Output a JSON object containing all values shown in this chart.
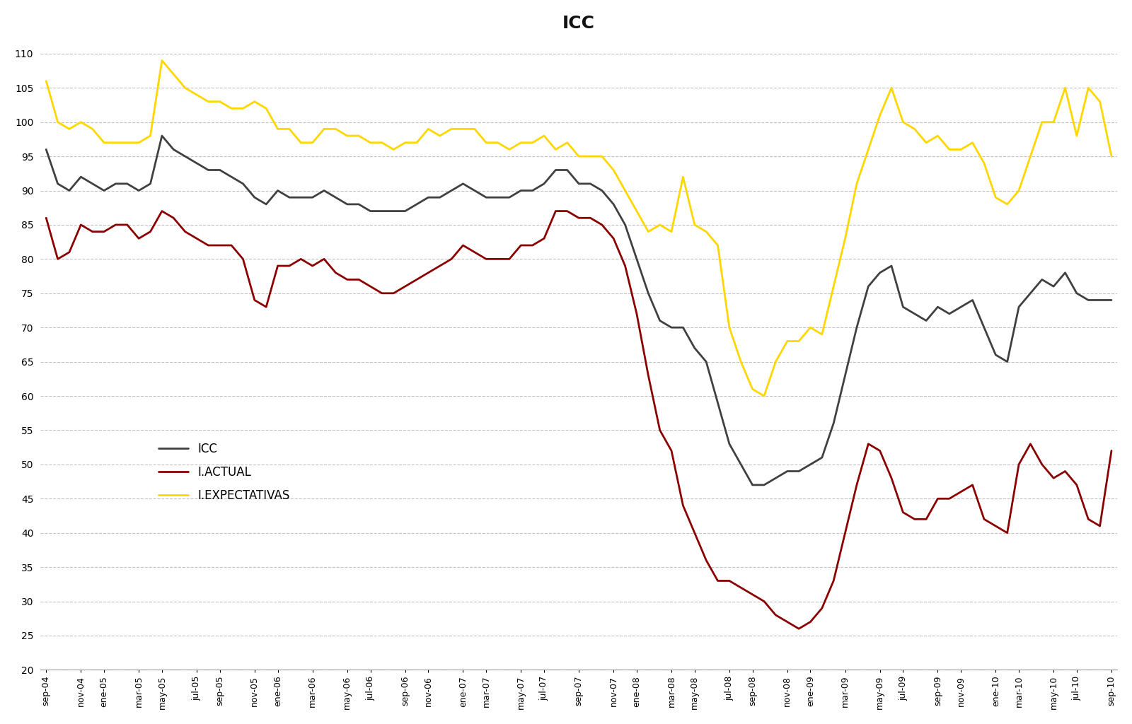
{
  "title": "ICC",
  "icc": [
    96,
    91,
    90,
    92,
    91,
    90,
    91,
    91,
    90,
    91,
    98,
    96,
    95,
    94,
    93,
    93,
    92,
    91,
    89,
    88,
    90,
    89,
    89,
    89,
    90,
    89,
    88,
    88,
    87,
    87,
    87,
    87,
    88,
    89,
    89,
    90,
    91,
    90,
    89,
    89,
    89,
    90,
    90,
    91,
    93,
    93,
    91,
    91,
    90,
    88,
    85,
    80,
    75,
    71,
    70,
    70,
    67,
    65,
    59,
    53,
    50,
    47,
    47,
    48,
    49,
    49,
    50,
    51,
    56,
    63,
    70,
    76,
    78,
    79,
    73,
    72,
    71,
    73,
    72,
    73,
    74,
    70,
    66,
    65,
    73,
    75,
    77,
    76,
    78,
    75,
    74,
    74,
    74
  ],
  "iactual": [
    86,
    80,
    81,
    85,
    84,
    84,
    85,
    85,
    83,
    84,
    87,
    86,
    84,
    83,
    82,
    82,
    82,
    80,
    74,
    73,
    79,
    79,
    80,
    79,
    80,
    78,
    77,
    77,
    76,
    75,
    75,
    76,
    77,
    78,
    79,
    80,
    82,
    81,
    80,
    80,
    80,
    82,
    82,
    83,
    87,
    87,
    86,
    86,
    85,
    83,
    79,
    72,
    63,
    55,
    52,
    44,
    40,
    36,
    33,
    33,
    32,
    31,
    30,
    28,
    27,
    26,
    27,
    29,
    33,
    40,
    47,
    53,
    52,
    48,
    43,
    42,
    42,
    45,
    45,
    46,
    47,
    42,
    41,
    40,
    50,
    53,
    50,
    48,
    49,
    47,
    42,
    41,
    52
  ],
  "iexpectativas": [
    106,
    100,
    99,
    100,
    99,
    97,
    97,
    97,
    97,
    98,
    109,
    107,
    105,
    104,
    103,
    103,
    102,
    102,
    103,
    102,
    99,
    99,
    97,
    97,
    99,
    99,
    98,
    98,
    97,
    97,
    96,
    97,
    97,
    99,
    98,
    99,
    99,
    99,
    97,
    97,
    96,
    97,
    97,
    98,
    96,
    97,
    95,
    95,
    95,
    93,
    90,
    87,
    84,
    85,
    84,
    92,
    85,
    84,
    82,
    70,
    65,
    61,
    60,
    65,
    68,
    68,
    70,
    69,
    76,
    83,
    91,
    96,
    101,
    105,
    100,
    99,
    97,
    98,
    96,
    96,
    97,
    94,
    89,
    88,
    90,
    95,
    100,
    100,
    105,
    98,
    105,
    103,
    95
  ],
  "icc_color": "#404040",
  "iactual_color": "#8B0000",
  "iexpectativas_color": "#FFD700",
  "x_labels": [
    "sep-04",
    "nov-04",
    "ene-05",
    "mar-05",
    "may-05",
    "jul-05",
    "sep-05",
    "nov-05",
    "ene-06",
    "mar-06",
    "may-06",
    "jul-06",
    "sep-06",
    "nov-06",
    "ene-07",
    "mar-07",
    "may-07",
    "jul-07",
    "sep-07",
    "nov-07",
    "ene-08",
    "mar-08",
    "may-08",
    "jul-08",
    "sep-08",
    "nov-08",
    "ene-09",
    "mar-09",
    "may-09",
    "jul-09",
    "sep-09",
    "nov-09",
    "ene-10",
    "mar-10",
    "may-10",
    "jul-10",
    "sep-10"
  ],
  "ylim_min": 20,
  "ylim_max": 112,
  "yticks": [
    20,
    25,
    30,
    35,
    40,
    45,
    50,
    55,
    60,
    65,
    70,
    75,
    80,
    85,
    90,
    95,
    100,
    105,
    110
  ],
  "legend_labels": [
    "ICC",
    "I.ACTUAL",
    "I.EXPECTATIVAS"
  ],
  "bg_color": "#FFFFFF",
  "grid_color": "#BBBBBB"
}
